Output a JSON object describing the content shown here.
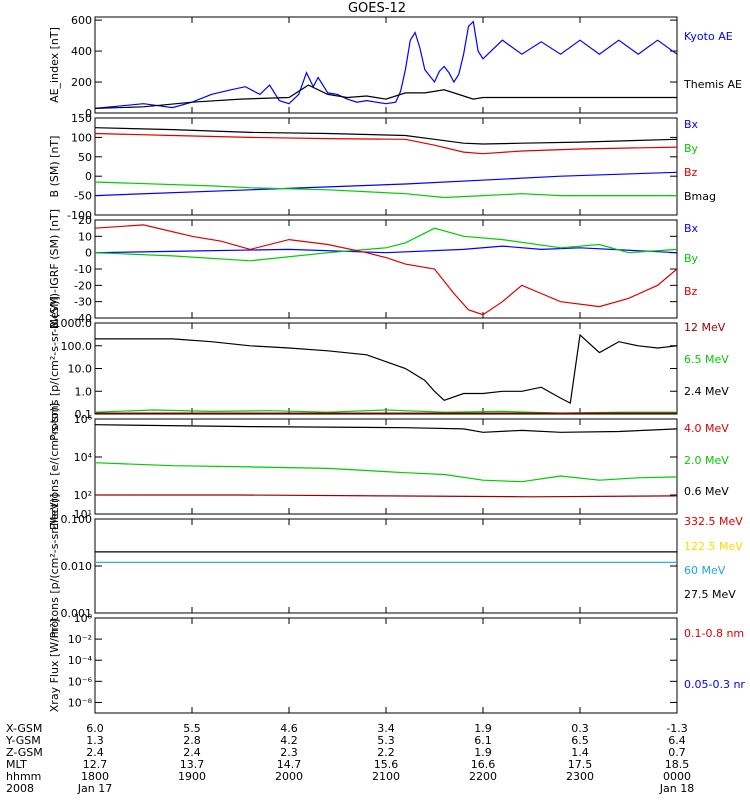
{
  "title": "GOES-12",
  "chart_data": [
    {
      "type": "line",
      "ylabel": "AE_index [nT]",
      "ylim": [
        0,
        620
      ],
      "scale": "linear",
      "yticks": [
        {
          "v": 0,
          "label": "0"
        },
        {
          "v": 200,
          "label": "200"
        },
        {
          "v": 400,
          "label": "400"
        },
        {
          "v": 600,
          "label": "600"
        }
      ],
      "series": [
        {
          "name": "Kyoto AE",
          "color": "#0000ff",
          "x": [
            0,
            0.5,
            0.8,
            1.0,
            1.2,
            1.4,
            1.55,
            1.7,
            1.8,
            1.9,
            2.0,
            2.1,
            2.18,
            2.25,
            2.3,
            2.4,
            2.5,
            2.6,
            2.7,
            2.8,
            2.9,
            3.0,
            3.1,
            3.15,
            3.2,
            3.25,
            3.3,
            3.35,
            3.4,
            3.5,
            3.55,
            3.6,
            3.65,
            3.7,
            3.75,
            3.8,
            3.85,
            3.9,
            3.95,
            4.0,
            4.2,
            4.4,
            4.6,
            4.8,
            5.0,
            5.2,
            5.4,
            5.6,
            5.8,
            6.0
          ],
          "values": [
            30,
            60,
            35,
            70,
            120,
            150,
            170,
            120,
            180,
            80,
            60,
            120,
            260,
            170,
            230,
            130,
            120,
            90,
            70,
            80,
            70,
            60,
            70,
            140,
            280,
            470,
            520,
            420,
            280,
            200,
            270,
            300,
            260,
            200,
            250,
            380,
            560,
            590,
            400,
            350,
            470,
            380,
            460,
            380,
            470,
            380,
            470,
            380,
            470,
            380
          ]
        },
        {
          "name": "Themis AE",
          "color": "#000000",
          "x": [
            0,
            0.5,
            1.0,
            1.5,
            2.0,
            2.2,
            2.4,
            2.6,
            2.8,
            3.0,
            3.2,
            3.4,
            3.6,
            3.8,
            3.9,
            4.0,
            6.0
          ],
          "values": [
            30,
            40,
            70,
            90,
            100,
            180,
            120,
            100,
            110,
            90,
            130,
            130,
            150,
            110,
            90,
            100,
            100
          ]
        }
      ],
      "legend": [
        {
          "name": "Kyoto AE",
          "color": "#0000ff"
        },
        {
          "name": "Themis AE",
          "color": "#000000"
        }
      ]
    },
    {
      "type": "line",
      "ylabel": "B (SM) [nT]",
      "ylim": [
        -100,
        150
      ],
      "scale": "linear",
      "yticks": [
        {
          "v": -100,
          "label": "-100"
        },
        {
          "v": -50,
          "label": "-50"
        },
        {
          "v": 0,
          "label": "0"
        },
        {
          "v": 50,
          "label": "50"
        },
        {
          "v": 100,
          "label": "100"
        },
        {
          "v": 150,
          "label": "150"
        }
      ],
      "series": [
        {
          "name": "Bx",
          "color": "#0000ff",
          "x": [
            0,
            1.6,
            3.2,
            4.8,
            6.0
          ],
          "values": [
            -50,
            -35,
            -20,
            0,
            10
          ]
        },
        {
          "name": "By",
          "color": "#00cc00",
          "x": [
            0,
            1.2,
            1.6,
            2.4,
            3.2,
            3.6,
            4.0,
            4.4,
            4.8,
            6.0
          ],
          "values": [
            -15,
            -25,
            -30,
            -35,
            -45,
            -55,
            -50,
            -45,
            -50,
            -50
          ]
        },
        {
          "name": "Bz",
          "color": "#dd0000",
          "x": [
            0,
            0.8,
            1.6,
            2.4,
            3.2,
            3.5,
            3.8,
            4.0,
            4.4,
            5.0,
            6.0
          ],
          "values": [
            110,
            105,
            100,
            97,
            95,
            80,
            62,
            58,
            65,
            70,
            75
          ]
        },
        {
          "name": "Bmag",
          "color": "#000000",
          "x": [
            0,
            0.8,
            1.6,
            2.4,
            3.2,
            3.5,
            3.8,
            4.0,
            4.4,
            5.0,
            6.0
          ],
          "values": [
            125,
            120,
            113,
            110,
            105,
            95,
            85,
            83,
            85,
            88,
            95
          ]
        }
      ],
      "legend": [
        {
          "name": "Bx",
          "color": "#0000ff"
        },
        {
          "name": "By",
          "color": "#00cc00"
        },
        {
          "name": "Bz",
          "color": "#dd0000"
        },
        {
          "name": "Bmag",
          "color": "#000000"
        }
      ]
    },
    {
      "type": "line",
      "ylabel": "B (SM)-IGRF (SM) [nT]",
      "ylim": [
        -40,
        20
      ],
      "scale": "linear",
      "yticks": [
        {
          "v": -40,
          "label": "-40"
        },
        {
          "v": -30,
          "label": "-30"
        },
        {
          "v": -20,
          "label": "-20"
        },
        {
          "v": -10,
          "label": "-10"
        },
        {
          "v": 0,
          "label": "0"
        },
        {
          "v": 10,
          "label": "10"
        },
        {
          "v": 20,
          "label": "20"
        }
      ],
      "series": [
        {
          "name": "Bx",
          "color": "#0000ff",
          "x": [
            0,
            1.0,
            2.0,
            3.0,
            3.8,
            4.2,
            4.6,
            5.0,
            6.0
          ],
          "values": [
            0,
            1,
            2,
            0,
            2,
            4,
            2,
            3,
            0
          ]
        },
        {
          "name": "By",
          "color": "#00cc00",
          "x": [
            0,
            0.8,
            1.6,
            2.4,
            3.0,
            3.2,
            3.5,
            3.8,
            4.2,
            4.8,
            5.2,
            5.5,
            6.0
          ],
          "values": [
            0,
            -2,
            -5,
            0,
            3,
            6,
            15,
            10,
            8,
            3,
            5,
            0,
            2
          ]
        },
        {
          "name": "Bz",
          "color": "#dd0000",
          "x": [
            0,
            0.5,
            1.0,
            1.3,
            1.6,
            2.0,
            2.4,
            2.8,
            3.0,
            3.2,
            3.5,
            3.7,
            3.85,
            4.0,
            4.2,
            4.4,
            4.6,
            4.8,
            5.2,
            5.5,
            5.8,
            6.0
          ],
          "values": [
            15,
            17,
            10,
            7,
            2,
            8,
            5,
            0,
            -3,
            -7,
            -10,
            -25,
            -35,
            -38,
            -30,
            -20,
            -25,
            -30,
            -33,
            -28,
            -20,
            -10
          ]
        }
      ],
      "legend": [
        {
          "name": "Bx",
          "color": "#0000ff"
        },
        {
          "name": "By",
          "color": "#00cc00"
        },
        {
          "name": "Bz",
          "color": "#dd0000"
        }
      ]
    },
    {
      "type": "line",
      "ylabel": "Protons [p/(cm²-s-sr-MeV)]",
      "ylim": [
        0.1,
        1000
      ],
      "scale": "log",
      "yticks": [
        {
          "v": 0.1,
          "label": "0.1"
        },
        {
          "v": 1,
          "label": "1.0"
        },
        {
          "v": 10,
          "label": "10.0"
        },
        {
          "v": 100,
          "label": "100.0"
        },
        {
          "v": 1000,
          "label": "1000.0"
        }
      ],
      "series": [
        {
          "name": "2.4 MeV",
          "color": "#000000",
          "x": [
            0,
            0.8,
            1.2,
            1.6,
            2.0,
            2.4,
            2.8,
            3.0,
            3.2,
            3.4,
            3.5,
            3.6,
            3.8,
            4.0,
            4.2,
            4.4,
            4.6,
            4.8,
            4.9,
            5.0,
            5.2,
            5.4,
            5.6,
            5.8,
            6.0
          ],
          "values": [
            200,
            200,
            150,
            100,
            80,
            60,
            40,
            20,
            10,
            3,
            1,
            0.4,
            0.8,
            0.8,
            1,
            1,
            1.5,
            0.5,
            0.3,
            300,
            50,
            150,
            100,
            80,
            100
          ]
        },
        {
          "name": "6.5 MeV",
          "color": "#00cc00",
          "x": [
            0,
            0.6,
            1.2,
            1.8,
            2.4,
            3.0,
            3.6,
            4.2,
            4.8,
            5.4,
            6.0
          ],
          "values": [
            0.12,
            0.15,
            0.13,
            0.14,
            0.12,
            0.15,
            0.12,
            0.13,
            0.11,
            0.12,
            0.12
          ]
        },
        {
          "name": "12 MeV",
          "color": "#990000",
          "x": [
            0,
            1.5,
            3.0,
            4.5,
            6.0
          ],
          "values": [
            0.11,
            0.11,
            0.11,
            0.11,
            0.11
          ]
        }
      ],
      "legend": [
        {
          "name": "12 MeV",
          "color": "#990000"
        },
        {
          "name": "6.5 MeV",
          "color": "#00cc00"
        },
        {
          "name": "2.4 MeV",
          "color": "#000000"
        }
      ]
    },
    {
      "type": "line",
      "ylabel": "Electrons [e/(cm²-s-sr)]",
      "ylim": [
        10,
        1000000
      ],
      "scale": "log",
      "yticks": [
        {
          "v": 10,
          "label": "10¹"
        },
        {
          "v": 100,
          "label": "10²"
        },
        {
          "v": 10000,
          "label": "10⁴"
        },
        {
          "v": 1000000,
          "label": "10⁶"
        }
      ],
      "series": [
        {
          "name": "0.6 MeV",
          "color": "#000000",
          "x": [
            0,
            1.6,
            3.2,
            3.8,
            4.0,
            4.4,
            4.8,
            5.4,
            6.0
          ],
          "values": [
            500000,
            400000,
            350000,
            300000,
            200000,
            250000,
            200000,
            220000,
            300000
          ]
        },
        {
          "name": "2.0 MeV",
          "color": "#00cc00",
          "x": [
            0,
            0.8,
            1.6,
            2.4,
            3.2,
            3.6,
            4.0,
            4.4,
            4.8,
            5.2,
            5.6,
            6.0
          ],
          "values": [
            5000,
            3500,
            3000,
            2500,
            1500,
            1200,
            600,
            500,
            1000,
            600,
            800,
            900
          ]
        },
        {
          "name": "4.0 MeV",
          "color": "#990000",
          "x": [
            0,
            1.5,
            3.0,
            4.5,
            6.0
          ],
          "values": [
            100,
            100,
            90,
            80,
            90
          ]
        }
      ],
      "legend": [
        {
          "name": "4.0 MeV",
          "color": "#dd0000"
        },
        {
          "name": "2.0 MeV",
          "color": "#00cc00"
        },
        {
          "name": "0.6 MeV",
          "color": "#000000"
        }
      ]
    },
    {
      "type": "line",
      "ylabel": "Protons [p/(cm²-s-sr-MeV)]",
      "ylim": [
        0.001,
        0.1
      ],
      "scale": "log",
      "yticks": [
        {
          "v": 0.001,
          "label": "0.001"
        },
        {
          "v": 0.01,
          "label": "0.010"
        },
        {
          "v": 0.1,
          "label": "0.100"
        }
      ],
      "series": [
        {
          "name": "27.5 MeV",
          "color": "#000000",
          "x": [
            0,
            6.0
          ],
          "values": [
            0.02,
            0.02
          ]
        },
        {
          "name": "60 MeV",
          "color": "#1aa7d6",
          "x": [
            0,
            6.0
          ],
          "values": [
            0.012,
            0.012
          ]
        }
      ],
      "legend": [
        {
          "name": "332.5 MeV",
          "color": "#dd0000"
        },
        {
          "name": "122.5 MeV",
          "color": "#ffd700"
        },
        {
          "name": "60 MeV",
          "color": "#1aa7d6"
        },
        {
          "name": "27.5 MeV",
          "color": "#000000"
        }
      ]
    },
    {
      "type": "line",
      "ylabel": "Xray Flux [W/m²]",
      "ylim": [
        1e-09,
        1
      ],
      "scale": "log",
      "yticks": [
        {
          "v": 1e-08,
          "label": "10⁻⁸"
        },
        {
          "v": 1e-06,
          "label": "10⁻⁶"
        },
        {
          "v": 0.0001,
          "label": "10⁻⁴"
        },
        {
          "v": 0.01,
          "label": "10⁻²"
        },
        {
          "v": 1,
          "label": "10⁰"
        }
      ],
      "series": [],
      "legend": [
        {
          "name": "0.1-0.8 nm",
          "color": "#dd0000"
        },
        {
          "name": "0.05-0.3 nr",
          "color": "#0000ff"
        }
      ]
    }
  ],
  "x_axis": {
    "row_labels": [
      "X-GSM",
      "Y-GSM",
      "Z-GSM",
      "MLT",
      "hhmm",
      "2008"
    ],
    "columns": [
      {
        "vals": [
          "6.0",
          "1.3",
          "2.4",
          "12.7",
          "1800",
          "Jan 17"
        ]
      },
      {
        "vals": [
          "5.5",
          "2.8",
          "2.4",
          "13.7",
          "1900",
          ""
        ]
      },
      {
        "vals": [
          "4.6",
          "4.2",
          "2.3",
          "14.7",
          "2000",
          ""
        ]
      },
      {
        "vals": [
          "3.4",
          "5.3",
          "2.2",
          "15.6",
          "2100",
          ""
        ]
      },
      {
        "vals": [
          "1.9",
          "6.1",
          "1.9",
          "16.6",
          "2200",
          ""
        ]
      },
      {
        "vals": [
          "0.3",
          "6.5",
          "1.4",
          "17.5",
          "2300",
          ""
        ]
      },
      {
        "vals": [
          "-1.3",
          "6.4",
          "0.7",
          "18.5",
          "0000",
          "Jan 18"
        ]
      }
    ]
  }
}
